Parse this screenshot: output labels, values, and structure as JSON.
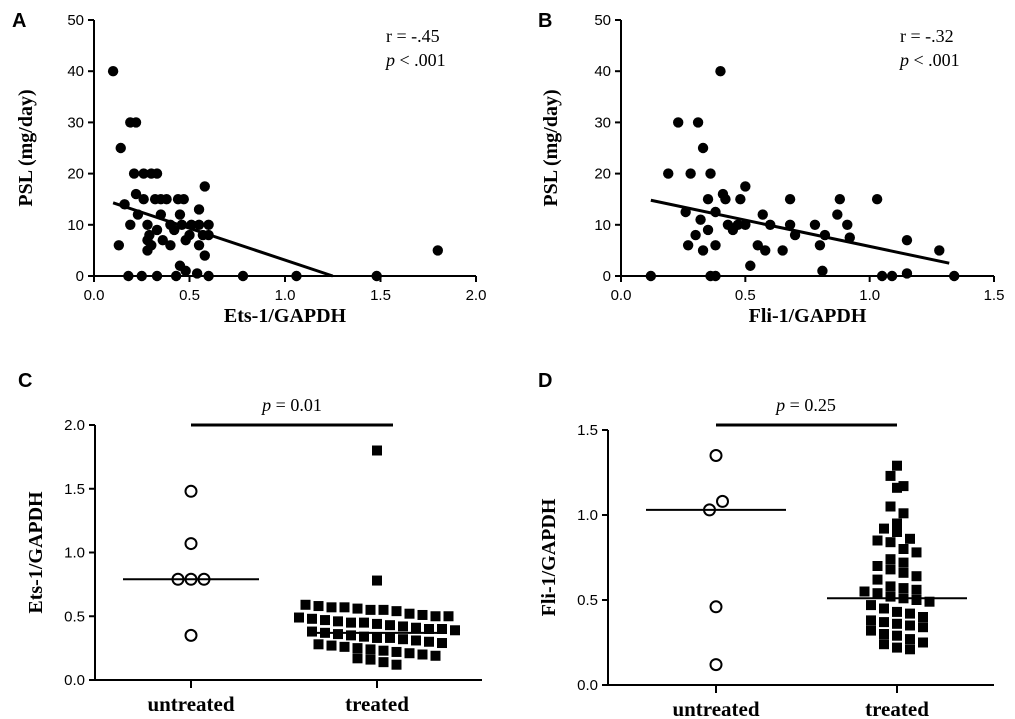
{
  "chart_data": [
    {
      "panel": "A",
      "type": "scatter",
      "xlabel": "Ets-1/GAPDH",
      "ylabel": "PSL (mg/day)",
      "xlim": [
        0.0,
        2.0
      ],
      "ylim": [
        0,
        50
      ],
      "xticks": [
        "0.0",
        "0.5",
        "1.0",
        "1.5",
        "2.0"
      ],
      "yticks": [
        "0",
        "10",
        "20",
        "30",
        "40",
        "50"
      ],
      "annotation": {
        "r_text": "r = -.45",
        "p_italic": "p",
        "p_rest": " < .001"
      },
      "regression": {
        "x": [
          0.1,
          1.25
        ],
        "y": [
          14.3,
          0
        ]
      },
      "points": [
        [
          0.1,
          40
        ],
        [
          0.19,
          30
        ],
        [
          0.22,
          30
        ],
        [
          0.14,
          25
        ],
        [
          0.21,
          20
        ],
        [
          0.26,
          20
        ],
        [
          0.3,
          20
        ],
        [
          0.33,
          20
        ],
        [
          0.58,
          17.5
        ],
        [
          0.22,
          16
        ],
        [
          0.26,
          15
        ],
        [
          0.32,
          15
        ],
        [
          0.35,
          15
        ],
        [
          0.38,
          15
        ],
        [
          0.44,
          15
        ],
        [
          0.47,
          15
        ],
        [
          0.16,
          14
        ],
        [
          0.55,
          13
        ],
        [
          0.23,
          12
        ],
        [
          0.35,
          12
        ],
        [
          0.45,
          12
        ],
        [
          0.19,
          10
        ],
        [
          0.28,
          10
        ],
        [
          0.4,
          10
        ],
        [
          0.46,
          10
        ],
        [
          0.51,
          10
        ],
        [
          0.55,
          10
        ],
        [
          0.6,
          10
        ],
        [
          0.33,
          9
        ],
        [
          0.42,
          9
        ],
        [
          0.29,
          8
        ],
        [
          0.5,
          8
        ],
        [
          0.57,
          8
        ],
        [
          0.6,
          8
        ],
        [
          0.28,
          7
        ],
        [
          0.36,
          7
        ],
        [
          0.48,
          7
        ],
        [
          0.13,
          6
        ],
        [
          0.3,
          6
        ],
        [
          0.4,
          6
        ],
        [
          0.55,
          6
        ],
        [
          0.28,
          5
        ],
        [
          0.58,
          4
        ],
        [
          0.45,
          2
        ],
        [
          0.48,
          1
        ],
        [
          0.54,
          0.5
        ],
        [
          0.18,
          0
        ],
        [
          0.25,
          0
        ],
        [
          0.33,
          0
        ],
        [
          0.43,
          0
        ],
        [
          0.6,
          0
        ],
        [
          0.78,
          0
        ],
        [
          1.06,
          0
        ],
        [
          1.48,
          0
        ],
        [
          1.8,
          5
        ]
      ]
    },
    {
      "panel": "B",
      "type": "scatter",
      "xlabel": "Fli-1/GAPDH",
      "ylabel": "PSL (mg/day)",
      "xlim": [
        0.0,
        1.5
      ],
      "ylim": [
        0,
        50
      ],
      "xticks": [
        "0.0",
        "0.5",
        "1.0",
        "1.5"
      ],
      "yticks": [
        "0",
        "10",
        "20",
        "30",
        "40",
        "50"
      ],
      "annotation": {
        "r_text": "r = -.32",
        "p_italic": "p",
        "p_rest": " < .001"
      },
      "regression": {
        "x": [
          0.12,
          1.32
        ],
        "y": [
          14.8,
          2.5
        ]
      },
      "points": [
        [
          0.4,
          40
        ],
        [
          0.23,
          30
        ],
        [
          0.31,
          30
        ],
        [
          0.33,
          25
        ],
        [
          0.19,
          20
        ],
        [
          0.28,
          20
        ],
        [
          0.36,
          20
        ],
        [
          0.5,
          17.5
        ],
        [
          0.41,
          16
        ],
        [
          0.42,
          15
        ],
        [
          0.35,
          15
        ],
        [
          0.48,
          15
        ],
        [
          0.68,
          15
        ],
        [
          0.88,
          15
        ],
        [
          1.03,
          15
        ],
        [
          0.26,
          12.5
        ],
        [
          0.38,
          12.5
        ],
        [
          0.57,
          12
        ],
        [
          0.87,
          12
        ],
        [
          0.32,
          11
        ],
        [
          0.43,
          10
        ],
        [
          0.47,
          10
        ],
        [
          0.5,
          10
        ],
        [
          0.6,
          10
        ],
        [
          0.68,
          10
        ],
        [
          0.78,
          10
        ],
        [
          0.91,
          10
        ],
        [
          0.35,
          9
        ],
        [
          0.45,
          9
        ],
        [
          0.3,
          8
        ],
        [
          0.7,
          8
        ],
        [
          0.82,
          8
        ],
        [
          0.92,
          7.5
        ],
        [
          1.15,
          7
        ],
        [
          0.38,
          6
        ],
        [
          0.55,
          6
        ],
        [
          0.27,
          6
        ],
        [
          0.8,
          6
        ],
        [
          1.28,
          5
        ],
        [
          0.33,
          5
        ],
        [
          0.58,
          5
        ],
        [
          0.65,
          5
        ],
        [
          0.52,
          2
        ],
        [
          0.81,
          1
        ],
        [
          1.15,
          0.5
        ],
        [
          0.12,
          0
        ],
        [
          0.36,
          0
        ],
        [
          0.38,
          0
        ],
        [
          1.05,
          0
        ],
        [
          1.09,
          0
        ],
        [
          1.34,
          0
        ]
      ]
    },
    {
      "panel": "C",
      "type": "dot-plot",
      "ylabel": "Ets-1/GAPDH",
      "categories": [
        "untreated",
        "treated"
      ],
      "ylim": [
        0.0,
        2.0
      ],
      "yticks": [
        "0.0",
        "0.5",
        "1.0",
        "1.5",
        "2.0"
      ],
      "annotation": {
        "p_italic": "p",
        "p_rest": " = 0.01"
      },
      "groups": [
        {
          "name": "untreated",
          "marker": "open-circle",
          "median": 0.79,
          "values": [
            0.35,
            0.79,
            0.79,
            0.79,
            1.07,
            1.48
          ]
        },
        {
          "name": "treated",
          "marker": "filled-square",
          "median": 0.37,
          "values": [
            1.8,
            0.78,
            0.59,
            0.58,
            0.57,
            0.57,
            0.56,
            0.55,
            0.55,
            0.54,
            0.52,
            0.51,
            0.5,
            0.5,
            0.49,
            0.48,
            0.47,
            0.46,
            0.45,
            0.45,
            0.44,
            0.43,
            0.42,
            0.41,
            0.4,
            0.4,
            0.39,
            0.38,
            0.37,
            0.36,
            0.35,
            0.34,
            0.33,
            0.33,
            0.32,
            0.31,
            0.3,
            0.29,
            0.28,
            0.27,
            0.26,
            0.25,
            0.24,
            0.23,
            0.22,
            0.21,
            0.2,
            0.19,
            0.17,
            0.16,
            0.14,
            0.12
          ]
        }
      ]
    },
    {
      "panel": "D",
      "type": "dot-plot",
      "ylabel": "Fli-1/GAPDH",
      "categories": [
        "untreated",
        "treated"
      ],
      "ylim": [
        0.0,
        1.5
      ],
      "yticks": [
        "0.0",
        "0.5",
        "1.0",
        "1.5"
      ],
      "annotation": {
        "p_italic": "p",
        "p_rest": " = 0.25"
      },
      "groups": [
        {
          "name": "untreated",
          "marker": "open-circle",
          "median": 1.03,
          "values": [
            0.12,
            0.46,
            1.03,
            1.08,
            1.35
          ]
        },
        {
          "name": "treated",
          "marker": "filled-square",
          "median": 0.51,
          "values": [
            1.29,
            1.23,
            1.17,
            1.16,
            1.05,
            1.01,
            0.95,
            0.92,
            0.9,
            0.86,
            0.85,
            0.84,
            0.8,
            0.78,
            0.74,
            0.72,
            0.7,
            0.68,
            0.66,
            0.64,
            0.62,
            0.58,
            0.57,
            0.56,
            0.55,
            0.54,
            0.52,
            0.51,
            0.5,
            0.49,
            0.47,
            0.45,
            0.43,
            0.42,
            0.4,
            0.38,
            0.37,
            0.36,
            0.35,
            0.34,
            0.32,
            0.3,
            0.29,
            0.27,
            0.25,
            0.24,
            0.22,
            0.21
          ]
        }
      ]
    }
  ]
}
